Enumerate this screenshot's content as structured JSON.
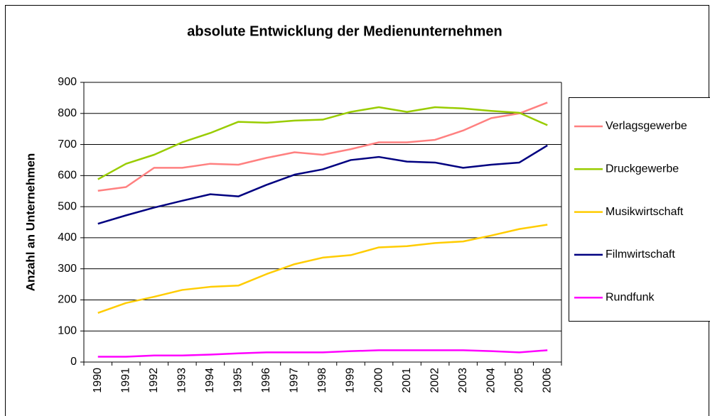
{
  "chart_data": {
    "type": "line",
    "title": "absolute Entwicklung der Medienunternehmen",
    "y_label": "Anzahl an Unternehmen",
    "categories": [
      "1990",
      "1991",
      "1992",
      "1993",
      "1994",
      "1995",
      "1996",
      "1997",
      "1998",
      "1999",
      "2000",
      "2001",
      "2002",
      "2003",
      "2004",
      "2005",
      "2006"
    ],
    "series": [
      {
        "name": "Verlagsgewerbe",
        "color": "#ff8080",
        "values": [
          551,
          563,
          625,
          625,
          638,
          635,
          657,
          675,
          667,
          685,
          707,
          707,
          715,
          745,
          785,
          800,
          835
        ]
      },
      {
        "name": "Druckgewerbe",
        "color": "#99cc00",
        "values": [
          588,
          638,
          667,
          707,
          737,
          773,
          770,
          777,
          780,
          805,
          820,
          805,
          820,
          816,
          808,
          802,
          762
        ]
      },
      {
        "name": "Musikwirtschaft",
        "color": "#ffcc00",
        "values": [
          158,
          190,
          210,
          232,
          242,
          246,
          283,
          315,
          336,
          344,
          369,
          373,
          383,
          388,
          407,
          428,
          442
        ]
      },
      {
        "name": "Filmwirtschaft",
        "color": "#000080",
        "values": [
          445,
          472,
          497,
          519,
          540,
          533,
          570,
          603,
          620,
          650,
          660,
          645,
          642,
          625,
          635,
          642,
          697
        ]
      },
      {
        "name": "Rundfunk",
        "color": "#ff00ff",
        "values": [
          17,
          17,
          21,
          21,
          24,
          28,
          31,
          31,
          31,
          35,
          38,
          38,
          38,
          38,
          35,
          31,
          38
        ]
      }
    ],
    "ylim": [
      0,
      900
    ],
    "yticks": [
      0,
      100,
      200,
      300,
      400,
      500,
      600,
      700,
      800,
      900
    ],
    "grid": true,
    "legend": "right"
  }
}
